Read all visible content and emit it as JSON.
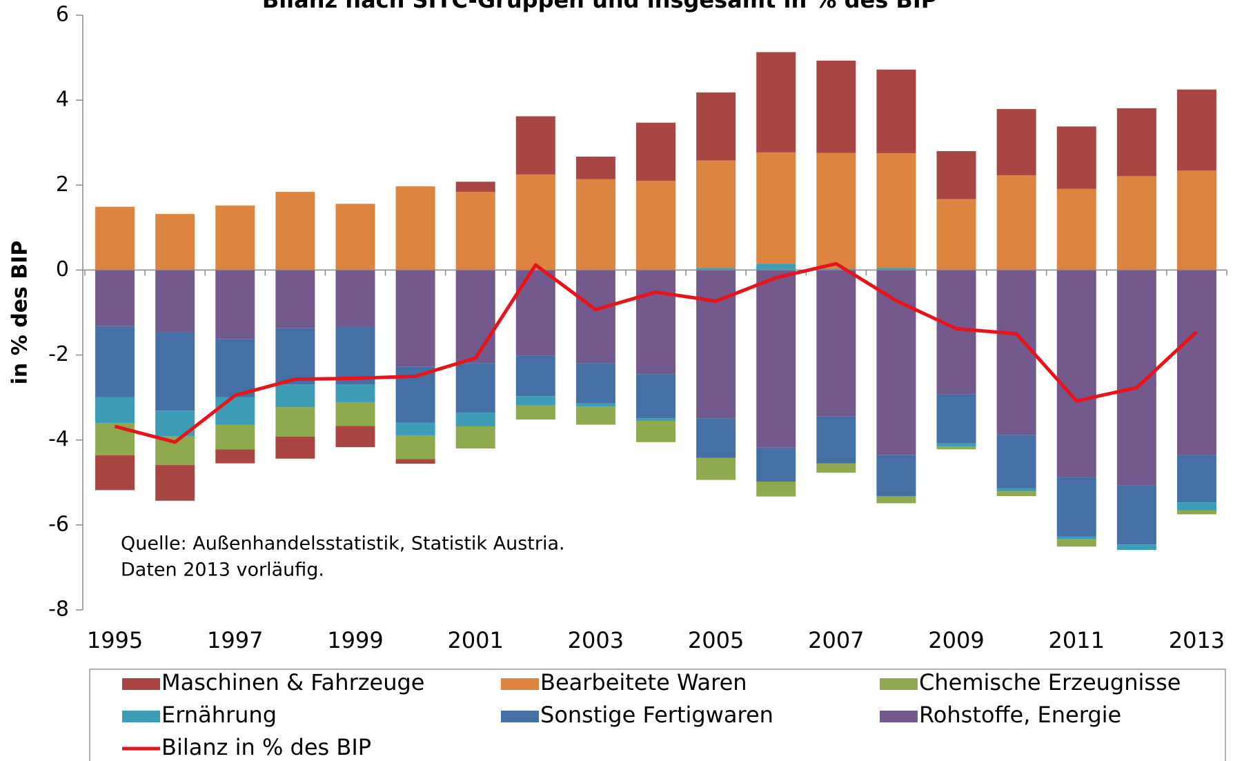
{
  "chart_data": {
    "type": "stacked-bar-line",
    "title": "Bilanz nach SITC-Gruppen und insgesamt in % des BIP",
    "y_label": "in % des BIP",
    "annotation": [
      "Quelle: Außenhandelsstatistik, Statistik Austria.",
      "Daten 2013 vorläufig."
    ],
    "categories": [
      "1995",
      null,
      "1997",
      null,
      "1999",
      null,
      "2001",
      null,
      "2003",
      null,
      "2005",
      null,
      "2007",
      null,
      "2009",
      null,
      "2011",
      null,
      "2013"
    ],
    "ylim": [
      -8,
      6
    ],
    "yticks": [
      -8,
      -6,
      -4,
      -2,
      0,
      2,
      4,
      6
    ],
    "series": [
      {
        "name": "Maschinen & Fahrzeuge",
        "color": "#a94643",
        "values": [
          -0.82,
          -0.84,
          -0.33,
          -0.52,
          -0.5,
          -0.11,
          0.24,
          1.37,
          0.53,
          1.37,
          1.6,
          2.36,
          2.17,
          1.97,
          1.13,
          1.56,
          1.47,
          1.6,
          1.91
        ]
      },
      {
        "name": "Bearbeitete Waren",
        "color": "#dd8540",
        "values": [
          1.49,
          1.32,
          1.52,
          1.84,
          1.56,
          1.97,
          1.84,
          2.25,
          2.14,
          2.1,
          2.53,
          2.62,
          2.73,
          2.7,
          1.67,
          2.23,
          1.91,
          2.21,
          2.34
        ]
      },
      {
        "name": "Chemische Erzeugnisse",
        "color": "#8ea94e",
        "values": [
          -0.76,
          -0.67,
          -0.58,
          -0.69,
          -0.56,
          -0.56,
          -0.52,
          -0.33,
          -0.43,
          -0.5,
          -0.52,
          -0.35,
          -0.22,
          -0.17,
          -0.07,
          -0.11,
          -0.17,
          0,
          -0.09
        ]
      },
      {
        "name": "Ernährung",
        "color": "#3d9db6",
        "values": [
          -0.61,
          -0.61,
          -0.65,
          -0.54,
          -0.41,
          -0.3,
          -0.32,
          -0.22,
          -0.07,
          -0.06,
          0.05,
          0.15,
          0.03,
          0.05,
          -0.07,
          -0.07,
          -0.07,
          -0.13,
          -0.19
        ]
      },
      {
        "name": "Sonstige Fertigwaren",
        "color": "#4470a6",
        "values": [
          -1.67,
          -1.84,
          -1.36,
          -1.32,
          -1.36,
          -1.32,
          -1.17,
          -0.95,
          -0.95,
          -1.04,
          -0.93,
          -0.8,
          -1.11,
          -0.97,
          -1.15,
          -1.26,
          -1.39,
          -1.39,
          -1.11
        ]
      },
      {
        "name": "Rohstoffe, Energie",
        "color": "#73598c",
        "values": [
          -1.32,
          -1.47,
          -1.63,
          -1.37,
          -1.34,
          -2.27,
          -2.19,
          -2.02,
          -2.19,
          -2.45,
          -3.49,
          -4.18,
          -3.44,
          -4.35,
          -2.93,
          -3.88,
          -4.88,
          -5.07,
          -4.36
        ]
      },
      {
        "name": "Bilanz in % des BIP",
        "color": "#e8141b",
        "type": "line",
        "values": [
          -3.68,
          -4.05,
          -2.95,
          -2.57,
          -2.55,
          -2.5,
          -2.07,
          0.12,
          -0.93,
          -0.52,
          -0.73,
          -0.18,
          0.15,
          -0.72,
          -1.38,
          -1.5,
          -3.08,
          -2.77,
          -1.45
        ]
      }
    ]
  }
}
